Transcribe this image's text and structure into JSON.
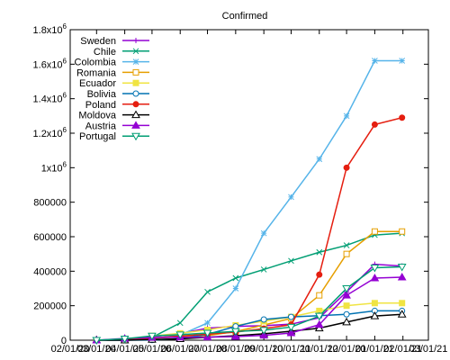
{
  "chart_data": {
    "type": "line",
    "title": "Confirmed",
    "xlabel": "",
    "ylabel": "",
    "x_tick_labels": [
      "02/01/20",
      "03/01/20",
      "04/01/20",
      "05/01/20",
      "06/01/20",
      "07/01/20",
      "08/01/20",
      "09/01/20",
      "10/01/20",
      "11/01/20",
      "12/01/20",
      "01/01/21",
      "02/01/21",
      "03/01/21"
    ],
    "x_tick_dates": [
      "2020-02-01",
      "2020-03-01",
      "2020-04-01",
      "2020-05-01",
      "2020-06-01",
      "2020-07-01",
      "2020-08-01",
      "2020-09-01",
      "2020-10-01",
      "2020-11-01",
      "2020-12-01",
      "2021-01-01",
      "2021-02-01",
      "2021-03-01"
    ],
    "xlim": [
      "2020-02-01",
      "2021-03-01"
    ],
    "ylim": [
      0,
      1800000
    ],
    "y_ticks": [
      {
        "value": 0,
        "label": "0"
      },
      {
        "value": 200000,
        "label": "200000"
      },
      {
        "value": 400000,
        "label": "400000"
      },
      {
        "value": 600000,
        "label": "600000"
      },
      {
        "value": 800000,
        "label": "800000"
      },
      {
        "value": 1000000,
        "label": "1x10",
        "exp": "6"
      },
      {
        "value": 1200000,
        "label": "1.2x10",
        "exp": "6"
      },
      {
        "value": 1400000,
        "label": "1.4x10",
        "exp": "6"
      },
      {
        "value": 1600000,
        "label": "1.6x10",
        "exp": "6"
      },
      {
        "value": 1800000,
        "label": "1.8x10",
        "exp": "6"
      }
    ],
    "grid": false,
    "legend_position": "top-left",
    "series": [
      {
        "name": "Sweden",
        "color": "#9400d3",
        "marker": "plus",
        "points": [
          [
            "2020-03-01",
            0
          ],
          [
            "2020-04-01",
            6000
          ],
          [
            "2020-05-01",
            21000
          ],
          [
            "2020-06-01",
            38000
          ],
          [
            "2020-07-01",
            70000
          ],
          [
            "2020-08-01",
            80000
          ],
          [
            "2020-09-01",
            84000
          ],
          [
            "2020-10-01",
            93000
          ],
          [
            "2020-11-01",
            130000
          ],
          [
            "2020-12-01",
            280000
          ],
          [
            "2021-01-01",
            440000
          ],
          [
            "2021-01-31",
            430000
          ]
        ]
      },
      {
        "name": "Chile",
        "color": "#009e73",
        "marker": "x",
        "points": [
          [
            "2020-03-01",
            0
          ],
          [
            "2020-04-01",
            3000
          ],
          [
            "2020-05-01",
            16000
          ],
          [
            "2020-06-01",
            100000
          ],
          [
            "2020-07-01",
            280000
          ],
          [
            "2020-08-01",
            360000
          ],
          [
            "2020-09-01",
            410000
          ],
          [
            "2020-10-01",
            460000
          ],
          [
            "2020-11-01",
            510000
          ],
          [
            "2020-12-01",
            550000
          ],
          [
            "2021-01-01",
            610000
          ],
          [
            "2021-01-31",
            620000
          ]
        ]
      },
      {
        "name": "Colombia",
        "color": "#56b4e9",
        "marker": "star",
        "points": [
          [
            "2020-03-01",
            0
          ],
          [
            "2020-04-01",
            1000
          ],
          [
            "2020-05-01",
            8000
          ],
          [
            "2020-06-01",
            30000
          ],
          [
            "2020-07-01",
            100000
          ],
          [
            "2020-08-01",
            300000
          ],
          [
            "2020-09-01",
            620000
          ],
          [
            "2020-10-01",
            830000
          ],
          [
            "2020-11-01",
            1050000
          ],
          [
            "2020-12-01",
            1300000
          ],
          [
            "2021-01-01",
            1620000
          ],
          [
            "2021-01-31",
            1620000
          ]
        ]
      },
      {
        "name": "Romania",
        "color": "#e69f00",
        "marker": "square",
        "points": [
          [
            "2020-03-01",
            0
          ],
          [
            "2020-04-01",
            2000
          ],
          [
            "2020-05-01",
            11000
          ],
          [
            "2020-06-01",
            19000
          ],
          [
            "2020-07-01",
            27000
          ],
          [
            "2020-08-01",
            50000
          ],
          [
            "2020-09-01",
            88000
          ],
          [
            "2020-10-01",
            126000
          ],
          [
            "2020-11-01",
            260000
          ],
          [
            "2020-12-01",
            500000
          ],
          [
            "2021-01-01",
            630000
          ],
          [
            "2021-01-31",
            630000
          ]
        ]
      },
      {
        "name": "Ecuador",
        "color": "#f0e442",
        "marker": "filled-square",
        "points": [
          [
            "2020-03-01",
            0
          ],
          [
            "2020-04-01",
            3000
          ],
          [
            "2020-05-01",
            25000
          ],
          [
            "2020-06-01",
            40000
          ],
          [
            "2020-07-01",
            60000
          ],
          [
            "2020-08-01",
            86000
          ],
          [
            "2020-09-01",
            110000
          ],
          [
            "2020-10-01",
            135000
          ],
          [
            "2020-11-01",
            170000
          ],
          [
            "2020-12-01",
            200000
          ],
          [
            "2021-01-01",
            215000
          ],
          [
            "2021-01-31",
            215000
          ]
        ]
      },
      {
        "name": "Bolivia",
        "color": "#0072b2",
        "marker": "circle",
        "points": [
          [
            "2020-03-01",
            0
          ],
          [
            "2020-04-01",
            100
          ],
          [
            "2020-05-01",
            1200
          ],
          [
            "2020-06-01",
            9000
          ],
          [
            "2020-07-01",
            34000
          ],
          [
            "2020-08-01",
            80000
          ],
          [
            "2020-09-01",
            120000
          ],
          [
            "2020-10-01",
            135000
          ],
          [
            "2020-11-01",
            142000
          ],
          [
            "2020-12-01",
            150000
          ],
          [
            "2021-01-01",
            170000
          ],
          [
            "2021-01-31",
            170000
          ]
        ]
      },
      {
        "name": "Poland",
        "color": "#e51e10",
        "marker": "filled-circle",
        "points": [
          [
            "2020-03-01",
            0
          ],
          [
            "2020-04-01",
            2000
          ],
          [
            "2020-05-01",
            13000
          ],
          [
            "2020-06-01",
            24000
          ],
          [
            "2020-07-01",
            35000
          ],
          [
            "2020-08-01",
            47000
          ],
          [
            "2020-09-01",
            67000
          ],
          [
            "2020-10-01",
            90000
          ],
          [
            "2020-11-01",
            380000
          ],
          [
            "2020-12-01",
            1000000
          ],
          [
            "2021-01-01",
            1250000
          ],
          [
            "2021-01-31",
            1290000
          ]
        ]
      },
      {
        "name": "Moldova",
        "color": "#000000",
        "marker": "triangle",
        "points": [
          [
            "2020-03-01",
            0
          ],
          [
            "2020-04-01",
            300
          ],
          [
            "2020-05-01",
            3900
          ],
          [
            "2020-06-01",
            8000
          ],
          [
            "2020-07-01",
            17000
          ],
          [
            "2020-08-01",
            26000
          ],
          [
            "2020-09-01",
            37000
          ],
          [
            "2020-10-01",
            52000
          ],
          [
            "2020-11-01",
            70000
          ],
          [
            "2020-12-01",
            105000
          ],
          [
            "2021-01-01",
            140000
          ],
          [
            "2021-01-31",
            150000
          ]
        ]
      },
      {
        "name": "Austria",
        "color": "#9400d3",
        "marker": "filled-triangle",
        "points": [
          [
            "2020-03-01",
            0
          ],
          [
            "2020-04-01",
            10000
          ],
          [
            "2020-05-01",
            15000
          ],
          [
            "2020-06-01",
            16700
          ],
          [
            "2020-07-01",
            17800
          ],
          [
            "2020-08-01",
            21000
          ],
          [
            "2020-09-01",
            28000
          ],
          [
            "2020-10-01",
            42000
          ],
          [
            "2020-11-01",
            90000
          ],
          [
            "2020-12-01",
            260000
          ],
          [
            "2021-01-01",
            360000
          ],
          [
            "2021-01-31",
            365000
          ]
        ]
      },
      {
        "name": "Portugal",
        "color": "#009e73",
        "marker": "inv-triangle",
        "points": [
          [
            "2020-03-01",
            0
          ],
          [
            "2020-04-01",
            8000
          ],
          [
            "2020-05-01",
            25000
          ],
          [
            "2020-06-01",
            32000
          ],
          [
            "2020-07-01",
            42000
          ],
          [
            "2020-08-01",
            51000
          ],
          [
            "2020-09-01",
            58000
          ],
          [
            "2020-10-01",
            76000
          ],
          [
            "2020-11-01",
            140000
          ],
          [
            "2020-12-01",
            300000
          ],
          [
            "2021-01-01",
            420000
          ],
          [
            "2021-01-31",
            425000
          ]
        ]
      }
    ]
  }
}
